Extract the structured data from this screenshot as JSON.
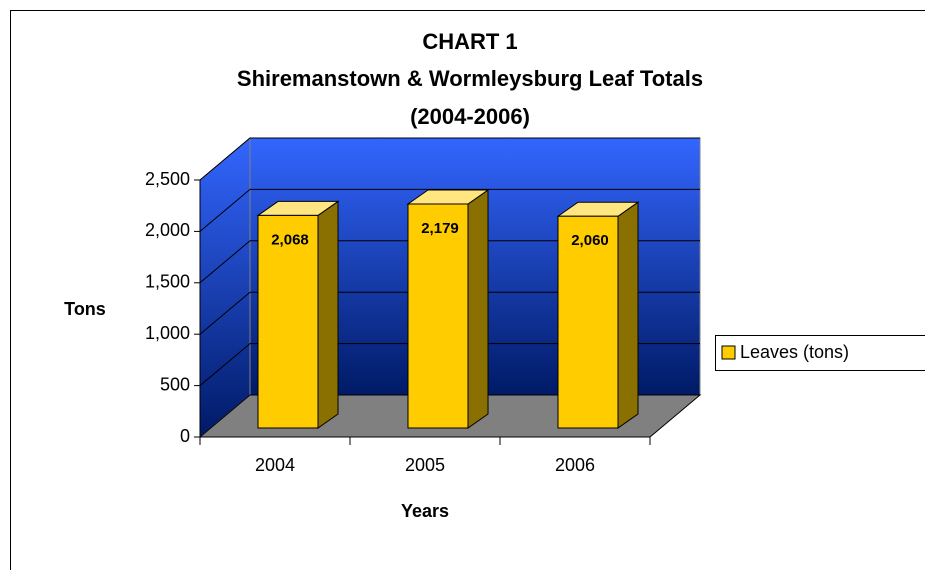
{
  "chart_data": {
    "type": "bar3d",
    "title": [
      "CHART 1",
      "Shiremanstown & Wormleysburg Leaf Totals",
      "(2004-2006)"
    ],
    "x_label": "Years",
    "y_label": "Tons",
    "categories": [
      "2004",
      "2005",
      "2006"
    ],
    "series": [
      {
        "name": "Leaves (tons)",
        "color": "#ffcc00",
        "values": [
          2068,
          2179,
          2060
        ],
        "value_labels": [
          "2,068",
          "2,179",
          "2,060"
        ]
      }
    ],
    "ylim": [
      0,
      2500
    ],
    "yticks": [
      0,
      500,
      {
        "value": 1000,
        "label": "1,000"
      },
      {
        "value": 1500,
        "label": "1,500"
      },
      {
        "value": 2000,
        "label": "2,000"
      },
      {
        "value": 2500,
        "label": "2,500"
      }
    ],
    "grid": true,
    "legend": "right"
  }
}
